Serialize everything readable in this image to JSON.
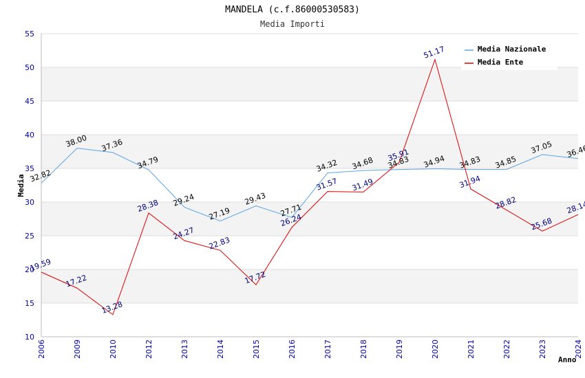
{
  "chart_data": {
    "type": "line",
    "title": "MANDELA (c.f.86000530583)",
    "subtitle": "Media Importi",
    "xlabel": "Anno",
    "ylabel": "Media",
    "ylim": [
      10,
      55
    ],
    "yticks": [
      10,
      15,
      20,
      25,
      30,
      35,
      40,
      45,
      50,
      55
    ],
    "grid": true,
    "legend_position": "top-right",
    "categories": [
      "2006",
      "2009",
      "2010",
      "2012",
      "2013",
      "2014",
      "2015",
      "2016",
      "2017",
      "2018",
      "2019",
      "2020",
      "2021",
      "2022",
      "2023",
      "2024"
    ],
    "series": [
      {
        "name": "Media Nazionale",
        "color": "#5ba3e6",
        "values": [
          32.82,
          38.0,
          37.36,
          34.79,
          29.24,
          27.19,
          29.43,
          27.71,
          34.32,
          34.68,
          34.83,
          34.94,
          34.83,
          34.85,
          37.05,
          36.46
        ]
      },
      {
        "name": "Media Ente",
        "color": "#dd0000",
        "values": [
          19.59,
          17.22,
          13.28,
          28.38,
          24.27,
          22.83,
          17.72,
          26.24,
          31.57,
          31.49,
          35.91,
          51.17,
          31.94,
          28.82,
          25.68,
          28.14
        ]
      }
    ]
  }
}
